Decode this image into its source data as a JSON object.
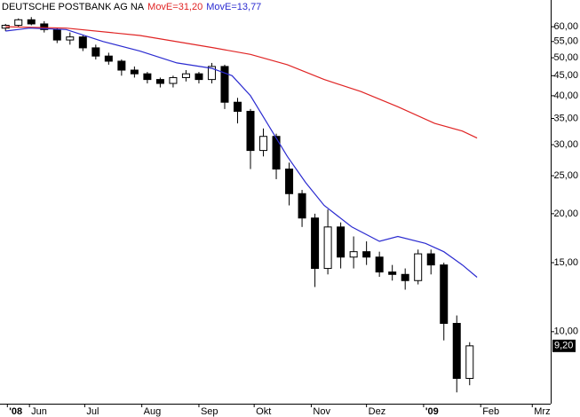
{
  "chart_data": {
    "type": "candlestick",
    "title": "DEUTSCHE POSTBANK AG NA",
    "log_scale": true,
    "ylim": [
      6.55,
      70.2
    ],
    "yticks": [
      {
        "value": 60,
        "label": "60,00"
      },
      {
        "value": 55,
        "label": "55,00"
      },
      {
        "value": 50,
        "label": "50,00"
      },
      {
        "value": 45,
        "label": "45,00"
      },
      {
        "value": 40,
        "label": "40,00"
      },
      {
        "value": 35,
        "label": "35,00"
      },
      {
        "value": 30,
        "label": "30,00"
      },
      {
        "value": 25,
        "label": "25,00"
      },
      {
        "value": 20,
        "label": "20,00"
      },
      {
        "value": 15,
        "label": "15,00"
      },
      {
        "value": 10,
        "label": "10,00"
      }
    ],
    "xlim": [
      -16,
      283
    ],
    "xticks": [
      {
        "value": -12,
        "label": "'08"
      },
      {
        "value": 0,
        "label": "Jun"
      },
      {
        "value": 30,
        "label": "Jul"
      },
      {
        "value": 61,
        "label": "Aug"
      },
      {
        "value": 92,
        "label": "Sep"
      },
      {
        "value": 122,
        "label": "Okt"
      },
      {
        "value": 153,
        "label": "Nov"
      },
      {
        "value": 183,
        "label": "Dez"
      },
      {
        "value": 214,
        "label": "'09"
      },
      {
        "value": 245,
        "label": "Feb"
      },
      {
        "value": 273,
        "label": "Mrz"
      }
    ],
    "candles": {
      "x": [
        -13,
        -6,
        1,
        8,
        15,
        22,
        29,
        36,
        43,
        50,
        57,
        64,
        71,
        78,
        85,
        92,
        99,
        106,
        113,
        120,
        127,
        134,
        141,
        148,
        155,
        162,
        169,
        176,
        183,
        190,
        197,
        204,
        211,
        218,
        225,
        232,
        239
      ],
      "open": [
        59.5,
        60.5,
        62.5,
        61,
        59,
        55.5,
        56.5,
        53,
        50.5,
        49,
        46.5,
        45.5,
        44,
        43,
        44.5,
        45.5,
        44,
        47.5,
        38.5,
        36.5,
        29,
        31.5,
        26,
        22.5,
        19.5,
        14.5,
        18.5,
        15.5,
        16,
        15.5,
        14.2,
        14,
        13.5,
        15.8,
        14.8,
        10.5,
        7.6
      ],
      "high": [
        61,
        63,
        63.5,
        62,
        59.5,
        58,
        57,
        54,
        51.5,
        49.5,
        47.5,
        46,
        44.5,
        45,
        46.5,
        46,
        48.5,
        48,
        39.5,
        37,
        33,
        32,
        27,
        23,
        20,
        20.5,
        19,
        17.5,
        17,
        16,
        14.8,
        14.5,
        16.2,
        16.2,
        15,
        11,
        9.4
      ],
      "low": [
        58.5,
        60,
        60.5,
        58,
        54.5,
        54,
        52,
        49.5,
        48,
        45,
        44.5,
        43,
        42,
        42,
        43.5,
        43,
        43,
        37,
        34,
        26,
        28,
        24.5,
        21,
        18.5,
        13,
        14,
        14.5,
        14.5,
        14.8,
        13.8,
        13.5,
        12.8,
        13.2,
        14,
        9.5,
        7.0,
        7.3
      ],
      "close": [
        60.5,
        62.5,
        61,
        59,
        55.5,
        56.5,
        53,
        50.5,
        49,
        46.5,
        45.5,
        44,
        43,
        44.5,
        45.5,
        44,
        47.5,
        38.5,
        36.5,
        29,
        31.5,
        26,
        22.5,
        19.5,
        14.5,
        18.5,
        15.5,
        16,
        15.5,
        14.2,
        14,
        13.5,
        15.8,
        14.8,
        10.5,
        7.6,
        9.2
      ]
    },
    "series": [
      {
        "name": "MovE=31,20",
        "color": "#e02424",
        "x": [
          -13,
          20,
          60,
          100,
          120,
          140,
          160,
          180,
          200,
          220,
          235,
          243
        ],
        "values": [
          60,
          59.5,
          57,
          53,
          51,
          48,
          44,
          41,
          37.5,
          34,
          32.5,
          31.2
        ]
      },
      {
        "name": "MovE=13,77",
        "color": "#2b2bd0",
        "x": [
          -13,
          0,
          20,
          40,
          60,
          80,
          99,
          110,
          120,
          130,
          140,
          150,
          160,
          175,
          190,
          200,
          215,
          225,
          235,
          243
        ],
        "values": [
          58.5,
          59.5,
          59,
          55,
          52,
          48.5,
          47,
          45,
          40,
          33.5,
          28,
          24,
          21,
          18.5,
          17,
          17.5,
          16.8,
          16,
          14.8,
          13.77
        ]
      }
    ],
    "last_price": {
      "value": 9.2,
      "label": "9,20"
    }
  }
}
